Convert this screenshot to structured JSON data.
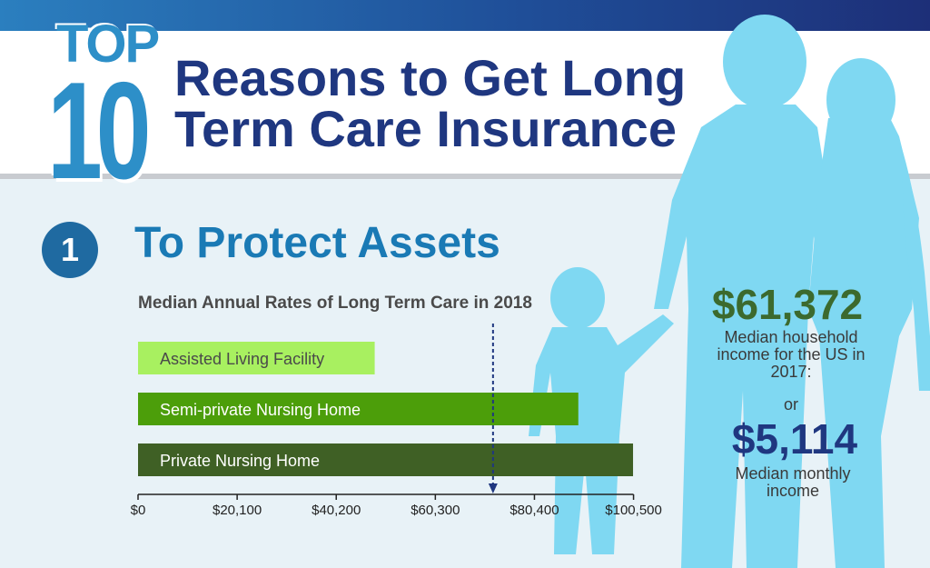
{
  "header": {
    "top_word": "TOP",
    "ten_word": "10",
    "title_line1": "Reasons to Get Long",
    "title_line2": "Term Care Insurance"
  },
  "section": {
    "number": "1",
    "title": "To Protect Assets"
  },
  "colors": {
    "accent_blue": "#2d8fc8",
    "title_navy": "#1f3780",
    "assisted_living": "#a8f060",
    "semi_private": "#4c9e0a",
    "private": "#3f6025",
    "marker": "#1f3780"
  },
  "chart_data": {
    "type": "bar",
    "orientation": "horizontal",
    "title": "Median Annual Rates of Long Term Care in 2018",
    "categories": [
      "Assisted Living Facility",
      "Semi-private Nursing Home",
      "Private Nursing Home"
    ],
    "values": [
      48000,
      89300,
      100400
    ],
    "xlim": [
      0,
      105000
    ],
    "x_ticks": [
      0,
      20100,
      40200,
      60300,
      80400,
      100500
    ],
    "x_tick_labels": [
      "$0",
      "$20,100",
      "$40,200",
      "$60,300",
      "$80,400",
      "$100,500"
    ],
    "reference_value": 72000,
    "grid": false
  },
  "stats": {
    "income_amount": "$61,372",
    "income_label": "Median household income for the US in 2017:",
    "or_label": "or",
    "monthly_amount": "$5,114",
    "monthly_label": "Median monthly income"
  }
}
